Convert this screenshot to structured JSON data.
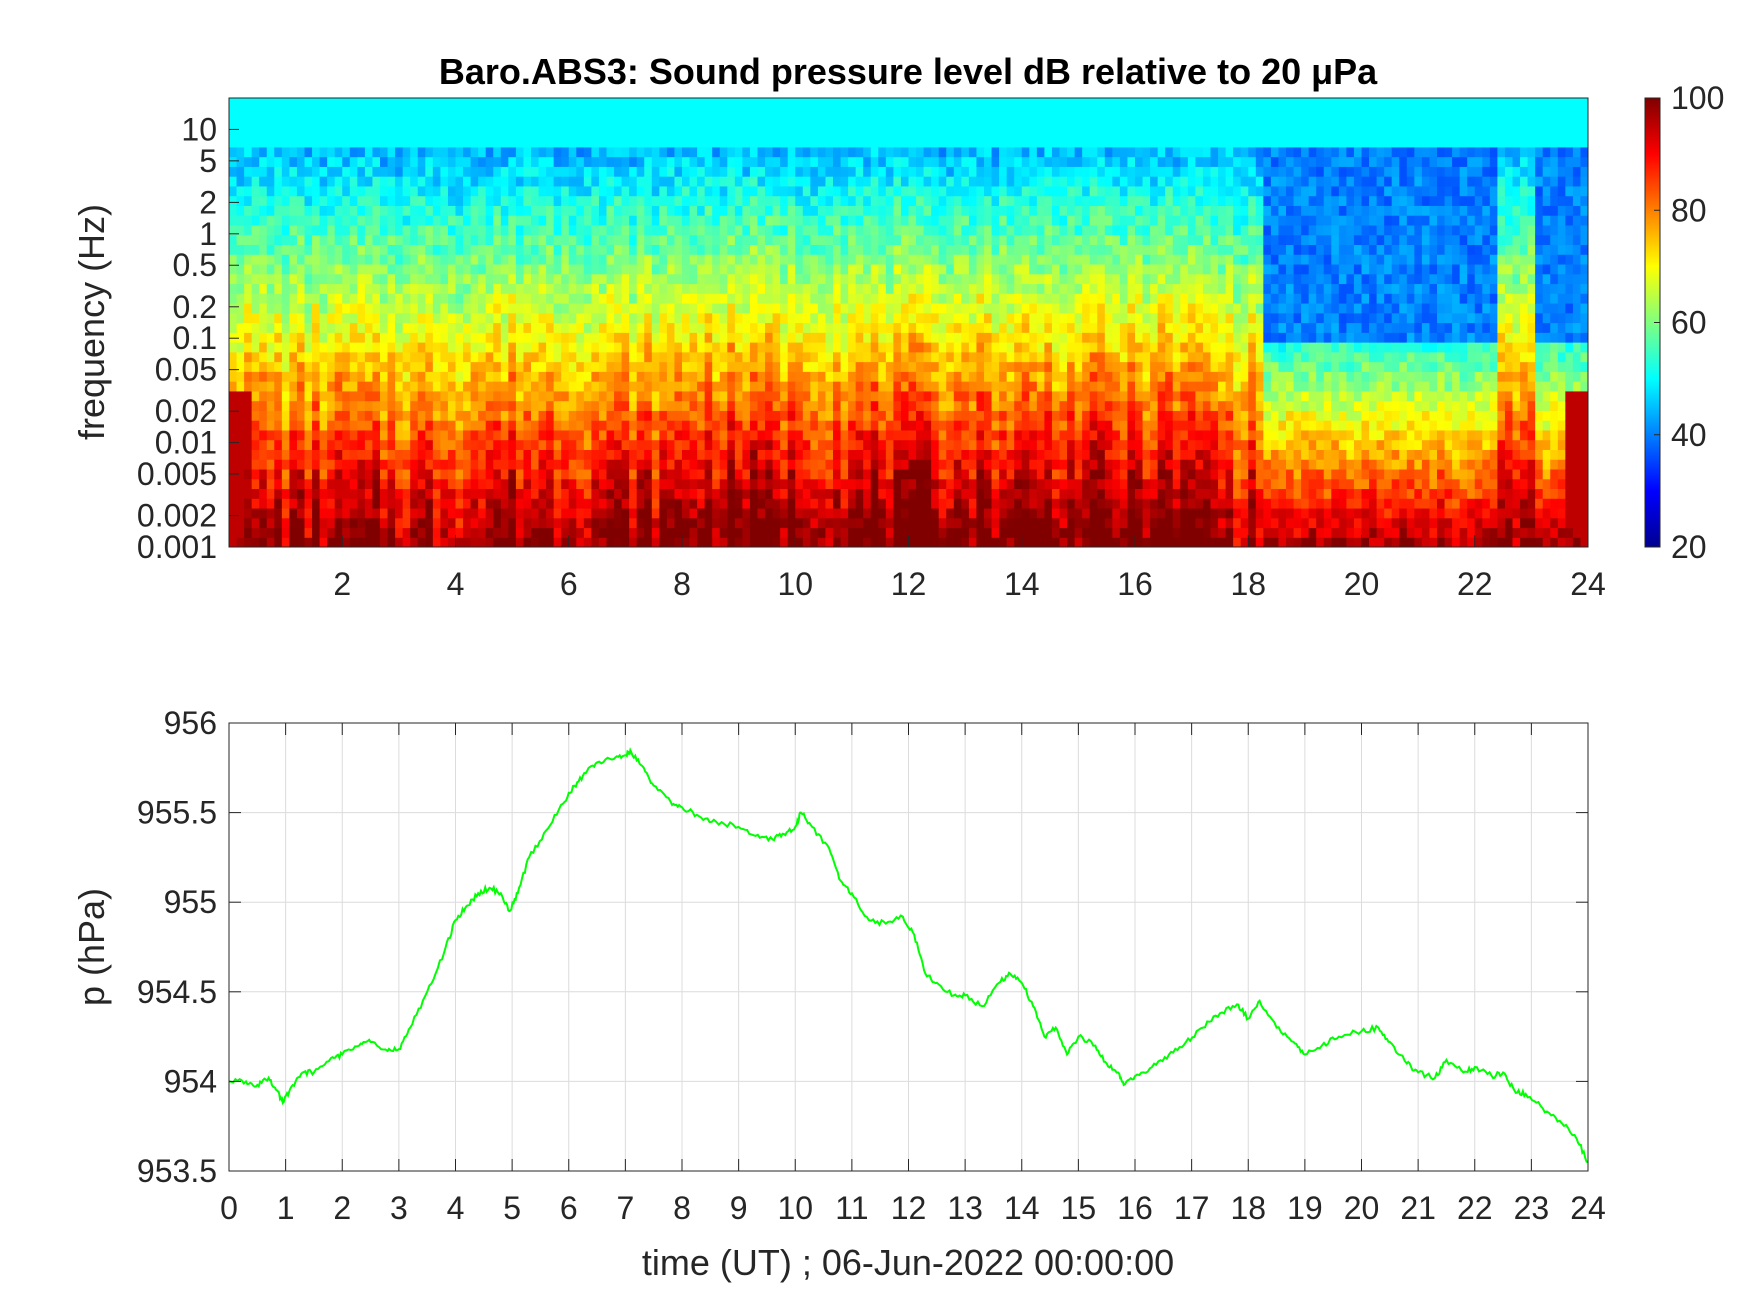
{
  "chart_data": [
    {
      "type": "heatmap",
      "title": "Baro.ABS3: Sound pressure level dB relative to 20 μPa",
      "ylabel": "frequency (Hz)",
      "xlabel": "",
      "xlim": [
        0,
        24
      ],
      "ylim": [
        0.001,
        20
      ],
      "yscale": "log",
      "x_ticks": [
        2,
        4,
        6,
        8,
        10,
        12,
        14,
        16,
        18,
        20,
        22,
        24
      ],
      "y_ticks": [
        0.001,
        0.002,
        0.005,
        0.01,
        0.02,
        0.05,
        0.1,
        0.2,
        0.5,
        1,
        2,
        5,
        10
      ],
      "y_tick_labels": [
        "0.001",
        "0.002",
        "0.005",
        "0.01",
        "0.02",
        "0.05",
        "0.1",
        "0.2",
        "0.5",
        "1",
        "2",
        "5",
        "10"
      ],
      "colormap": "jet",
      "colorbar": {
        "min": 20,
        "max": 100,
        "ticks": [
          20,
          40,
          60,
          80,
          100
        ]
      },
      "grid": false
    },
    {
      "type": "line",
      "title": "",
      "xlabel": "time (UT) ; 06-Jun-2022 00:00:00",
      "ylabel": "p (hPa)",
      "xlim": [
        0,
        24
      ],
      "ylim": [
        953.5,
        956
      ],
      "x_ticks": [
        0,
        1,
        2,
        3,
        4,
        5,
        6,
        7,
        8,
        9,
        10,
        11,
        12,
        13,
        14,
        15,
        16,
        17,
        18,
        19,
        20,
        21,
        22,
        23,
        24
      ],
      "y_ticks": [
        953.5,
        954,
        954.5,
        955,
        955.5,
        956
      ],
      "y_tick_labels": [
        "953.5",
        "954",
        "954.5",
        "955",
        "955.5",
        "956"
      ],
      "grid": true,
      "series": [
        {
          "color": "#00ff00",
          "x": [
            0,
            0.3,
            0.5,
            0.7,
            0.85,
            0.95,
            1.1,
            1.3,
            1.5,
            1.8,
            2.0,
            2.3,
            2.5,
            2.8,
            3.0,
            3.2,
            3.5,
            3.8,
            4.0,
            4.2,
            4.4,
            4.6,
            4.8,
            4.95,
            5.1,
            5.3,
            5.6,
            5.9,
            6.1,
            6.3,
            6.5,
            6.8,
            7.0,
            7.1,
            7.3,
            7.5,
            7.8,
            8.0,
            8.3,
            8.6,
            9.0,
            9.3,
            9.6,
            9.8,
            10.0,
            10.1,
            10.3,
            10.6,
            10.8,
            11.0,
            11.3,
            11.6,
            11.9,
            12.1,
            12.3,
            12.5,
            12.8,
            13.0,
            13.3,
            13.6,
            13.8,
            14.0,
            14.2,
            14.4,
            14.6,
            14.8,
            15.0,
            15.3,
            15.5,
            15.7,
            15.8,
            16.0,
            16.3,
            16.6,
            16.9,
            17.2,
            17.5,
            17.8,
            18.0,
            18.2,
            18.5,
            18.8,
            19.0,
            19.3,
            19.6,
            20.0,
            20.3,
            20.5,
            20.8,
            21.0,
            21.3,
            21.5,
            21.8,
            22.0,
            22.3,
            22.5,
            22.7,
            22.9,
            23.2,
            23.5,
            23.8,
            24.0
          ],
          "values": [
            954.0,
            954.0,
            953.98,
            954.02,
            953.95,
            953.88,
            953.97,
            954.05,
            954.05,
            954.13,
            954.15,
            954.2,
            954.22,
            954.17,
            954.18,
            954.3,
            954.5,
            954.72,
            954.9,
            954.98,
            955.05,
            955.08,
            955.05,
            954.95,
            955.05,
            955.25,
            955.4,
            955.55,
            955.65,
            955.72,
            955.78,
            955.8,
            955.82,
            955.84,
            955.76,
            955.65,
            955.56,
            955.53,
            955.48,
            955.45,
            955.42,
            955.37,
            955.35,
            955.38,
            955.42,
            955.5,
            955.42,
            955.3,
            955.12,
            955.05,
            954.9,
            954.88,
            954.92,
            954.82,
            954.6,
            954.55,
            954.48,
            954.48,
            954.42,
            954.55,
            954.6,
            954.55,
            954.42,
            954.25,
            954.3,
            954.15,
            954.25,
            954.2,
            954.1,
            954.05,
            953.98,
            954.03,
            954.08,
            954.15,
            954.22,
            954.3,
            954.38,
            954.43,
            954.35,
            954.45,
            954.3,
            954.22,
            954.15,
            954.2,
            954.25,
            954.28,
            954.3,
            954.22,
            954.1,
            954.05,
            954.02,
            954.12,
            954.05,
            954.08,
            954.03,
            954.05,
            953.95,
            953.93,
            953.85,
            953.78,
            953.68,
            953.55
          ]
        }
      ]
    }
  ]
}
